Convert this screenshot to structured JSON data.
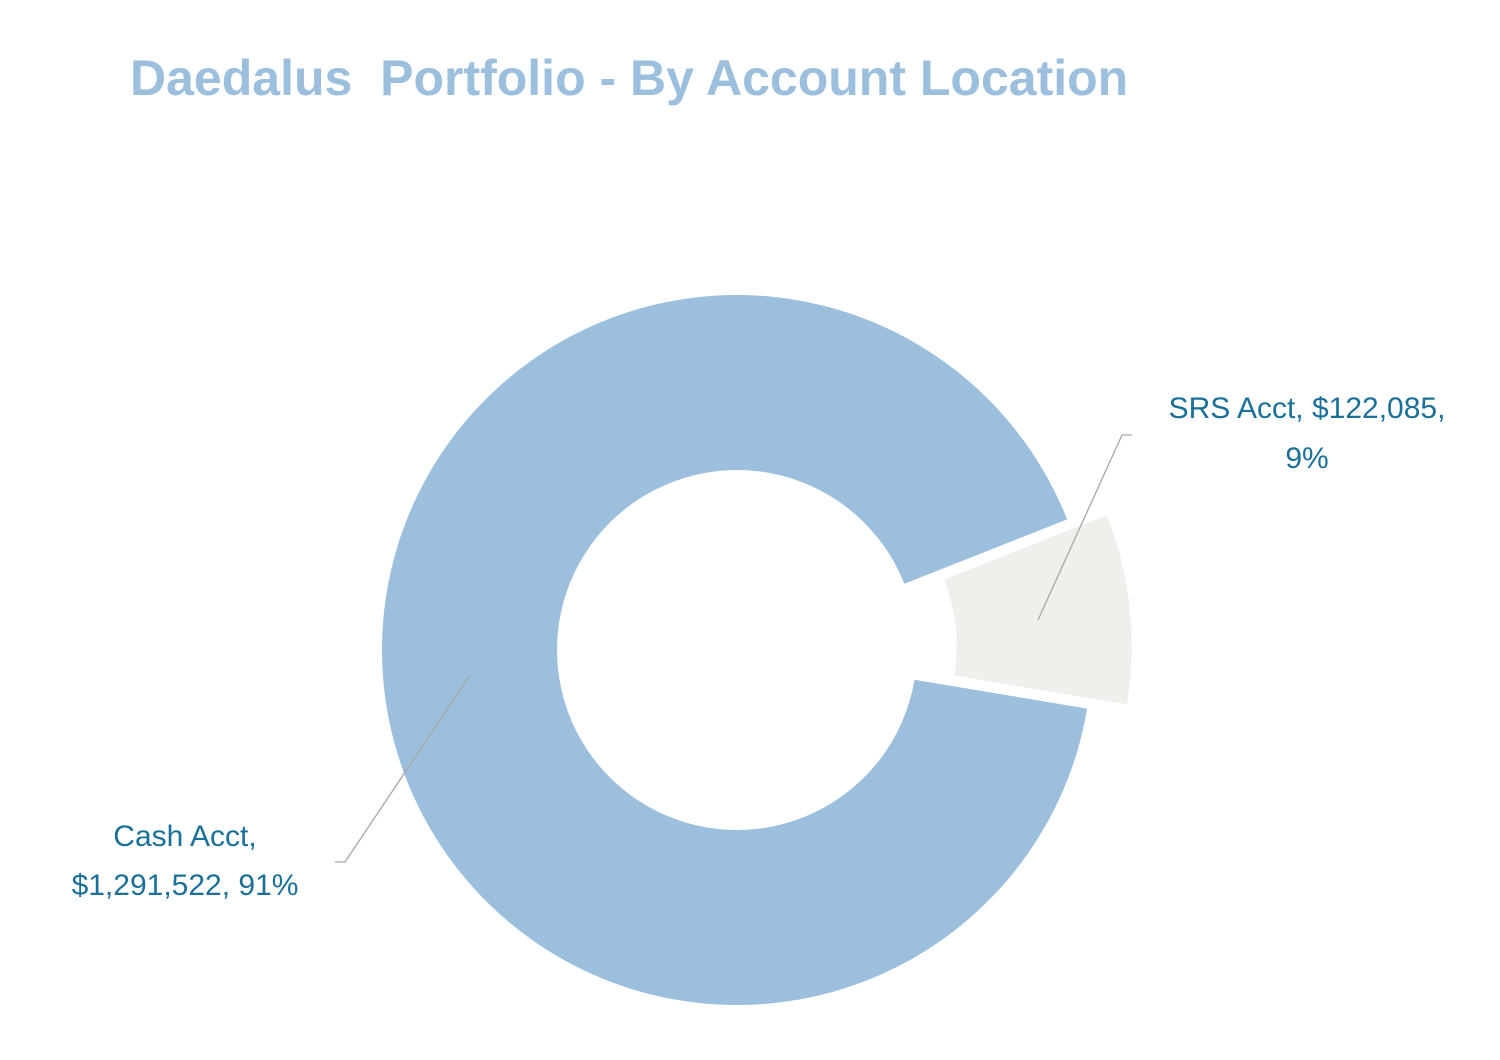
{
  "chart_data": {
    "type": "donut",
    "title": "Daedalus  Portfolio - By Account Location",
    "values": [
      1291522,
      122085
    ],
    "value_labels": [
      [
        "Cash Acct,",
        "$1,291,522, 91%"
      ],
      [
        "SRS Acct, $122,085,",
        "9%"
      ]
    ],
    "colors": [
      "#9bbfdc",
      "#f0efec"
    ]
  }
}
